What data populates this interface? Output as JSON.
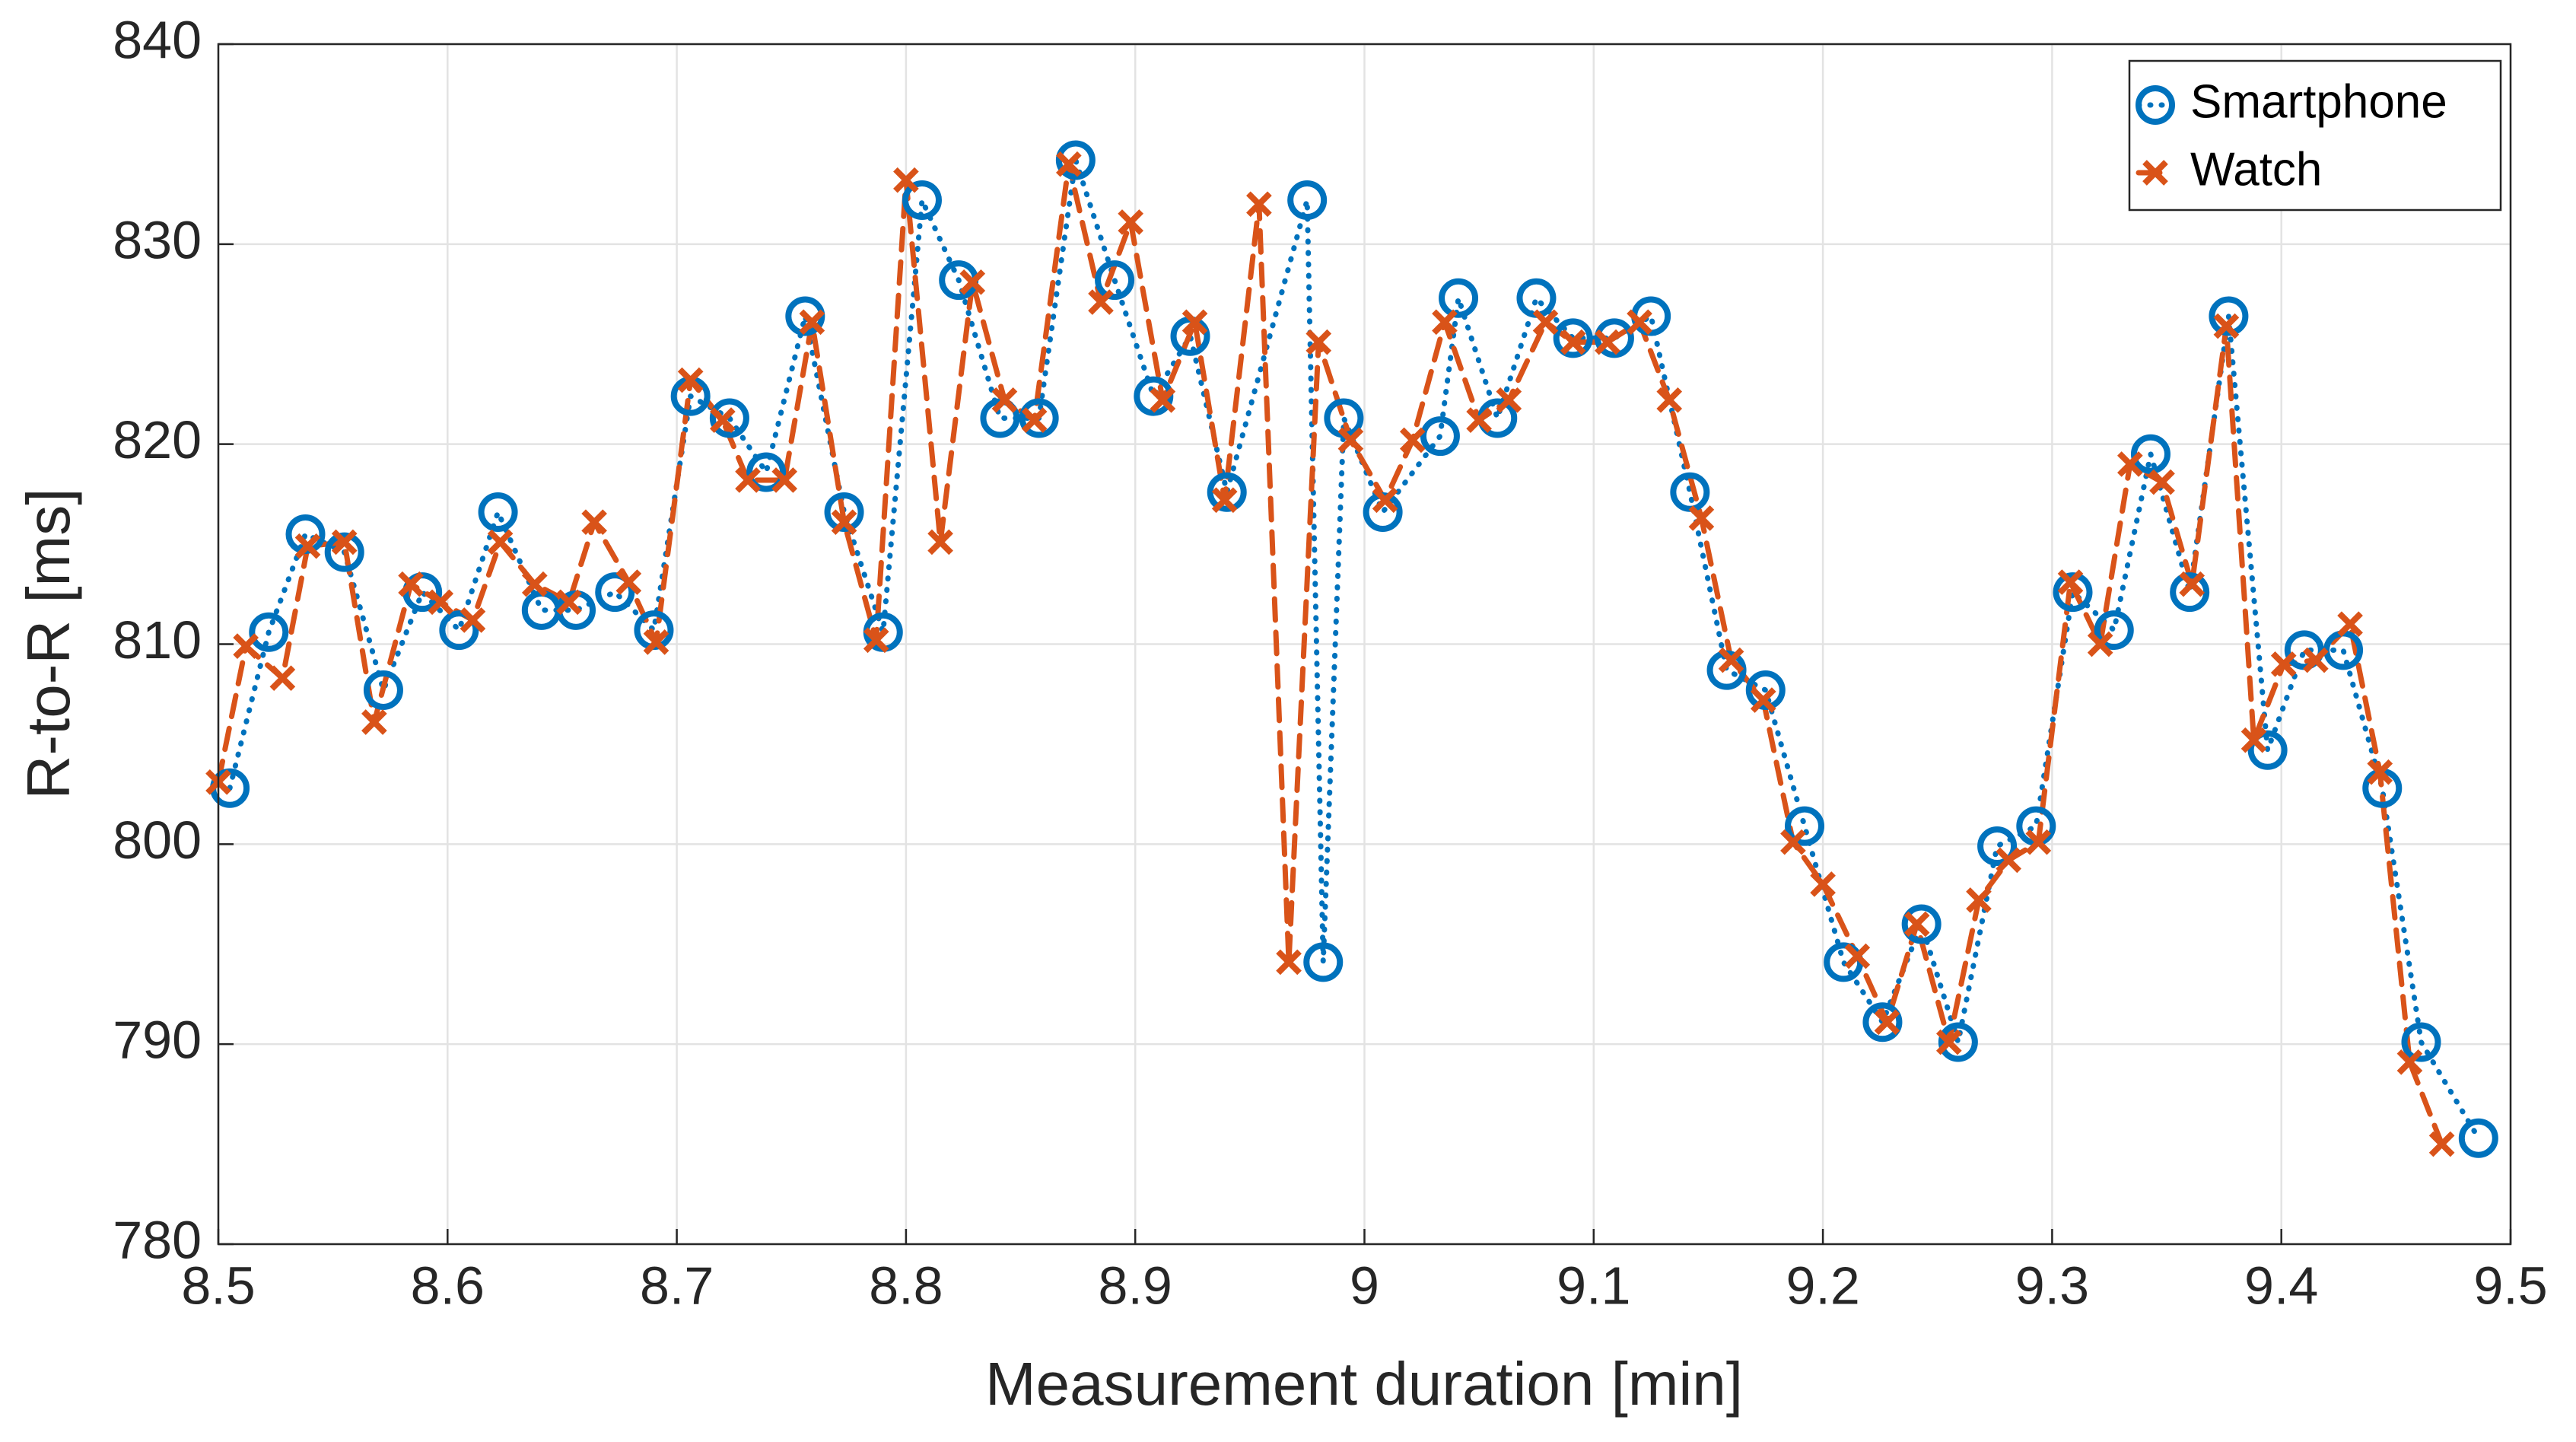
{
  "chart_data": {
    "type": "line",
    "xlabel": "Measurement duration [min]",
    "ylabel": "R-to-R [ms]",
    "xlim": [
      8.5,
      9.5
    ],
    "xticks": [
      8.5,
      8.6,
      8.7,
      8.8,
      8.9,
      9,
      9.1,
      9.2,
      9.3,
      9.4,
      9.5
    ],
    "ylim": [
      780,
      840
    ],
    "yticks": [
      780,
      790,
      800,
      810,
      820,
      830,
      840
    ],
    "grid": true,
    "legend": "upper right",
    "series": [
      {
        "name": "Smartphone",
        "color": "#0072bd",
        "marker": "o",
        "linestyle": "dotted",
        "x": [
          8.505,
          8.522,
          8.538,
          8.555,
          8.572,
          8.589,
          8.605,
          8.622,
          8.641,
          8.656,
          8.673,
          8.69,
          8.706,
          8.723,
          8.739,
          8.756,
          8.773,
          8.79,
          8.807,
          8.823,
          8.841,
          8.858,
          8.874,
          8.891,
          8.908,
          8.924,
          8.94,
          8.975,
          8.982,
          8.991,
          9.008,
          9.033,
          9.041,
          9.058,
          9.075,
          9.091,
          9.109,
          9.125,
          9.142,
          9.158,
          9.175,
          9.192,
          9.209,
          9.226,
          9.243,
          9.259,
          9.276,
          9.293,
          9.309,
          9.327,
          9.343,
          9.36,
          9.377,
          9.394,
          9.41,
          9.427,
          9.444,
          9.461,
          9.486
        ],
        "values": [
          802.8,
          810.6,
          815.5,
          814.6,
          807.7,
          812.6,
          810.7,
          816.6,
          811.7,
          811.7,
          812.6,
          810.7,
          822.4,
          821.3,
          818.6,
          826.4,
          816.6,
          810.6,
          832.2,
          828.2,
          821.3,
          821.3,
          834.2,
          828.2,
          822.4,
          825.4,
          817.6,
          832.2,
          794.1,
          821.3,
          816.6,
          820.4,
          827.3,
          821.3,
          827.3,
          825.3,
          825.3,
          826.4,
          817.6,
          808.7,
          807.7,
          800.9,
          794.1,
          791.1,
          796.0,
          790.1,
          799.9,
          800.9,
          812.6,
          810.7,
          819.5,
          812.6,
          826.4,
          804.7,
          809.7,
          809.7,
          802.8,
          790.1,
          785.3
        ]
      },
      {
        "name": "Watch",
        "color": "#d95319",
        "marker": "x",
        "linestyle": "dashed",
        "x": [
          8.5,
          8.512,
          8.528,
          8.539,
          8.555,
          8.568,
          8.584,
          8.597,
          8.611,
          8.623,
          8.638,
          8.653,
          8.664,
          8.679,
          8.691,
          8.706,
          8.72,
          8.731,
          8.747,
          8.759,
          8.773,
          8.787,
          8.8,
          8.815,
          8.829,
          8.843,
          8.856,
          8.871,
          8.885,
          8.898,
          8.912,
          8.926,
          8.939,
          8.954,
          8.967,
          8.98,
          8.994,
          9.009,
          9.021,
          9.035,
          9.05,
          9.063,
          9.079,
          9.091,
          9.106,
          9.12,
          9.133,
          9.147,
          9.16,
          9.174,
          9.187,
          9.2,
          9.215,
          9.228,
          9.241,
          9.255,
          9.268,
          9.281,
          9.294,
          9.308,
          9.321,
          9.334,
          9.348,
          9.361,
          9.376,
          9.388,
          9.401,
          9.415,
          9.43,
          9.443,
          9.456,
          9.47
        ],
        "values": [
          803.1,
          809.9,
          808.3,
          814.9,
          815.1,
          806.1,
          813.0,
          812.1,
          811.2,
          815.1,
          813.0,
          812.1,
          816.1,
          813.1,
          810.1,
          823.2,
          821.2,
          818.2,
          818.2,
          826.1,
          816.1,
          810.2,
          833.2,
          815.1,
          828.1,
          822.2,
          821.2,
          834.0,
          827.1,
          831.1,
          822.2,
          826.1,
          817.2,
          832.0,
          794.1,
          825.1,
          820.2,
          817.2,
          820.2,
          826.1,
          821.2,
          822.2,
          826.1,
          825.1,
          825.1,
          826.1,
          822.2,
          816.3,
          809.2,
          807.2,
          800.1,
          798.0,
          794.4,
          791.1,
          796.0,
          790.1,
          797.2,
          799.2,
          800.1,
          813.1,
          810.0,
          819.0,
          818.1,
          813.0,
          825.9,
          805.2,
          809.0,
          809.2,
          811.0,
          803.6,
          789.1,
          785.0
        ]
      }
    ]
  }
}
